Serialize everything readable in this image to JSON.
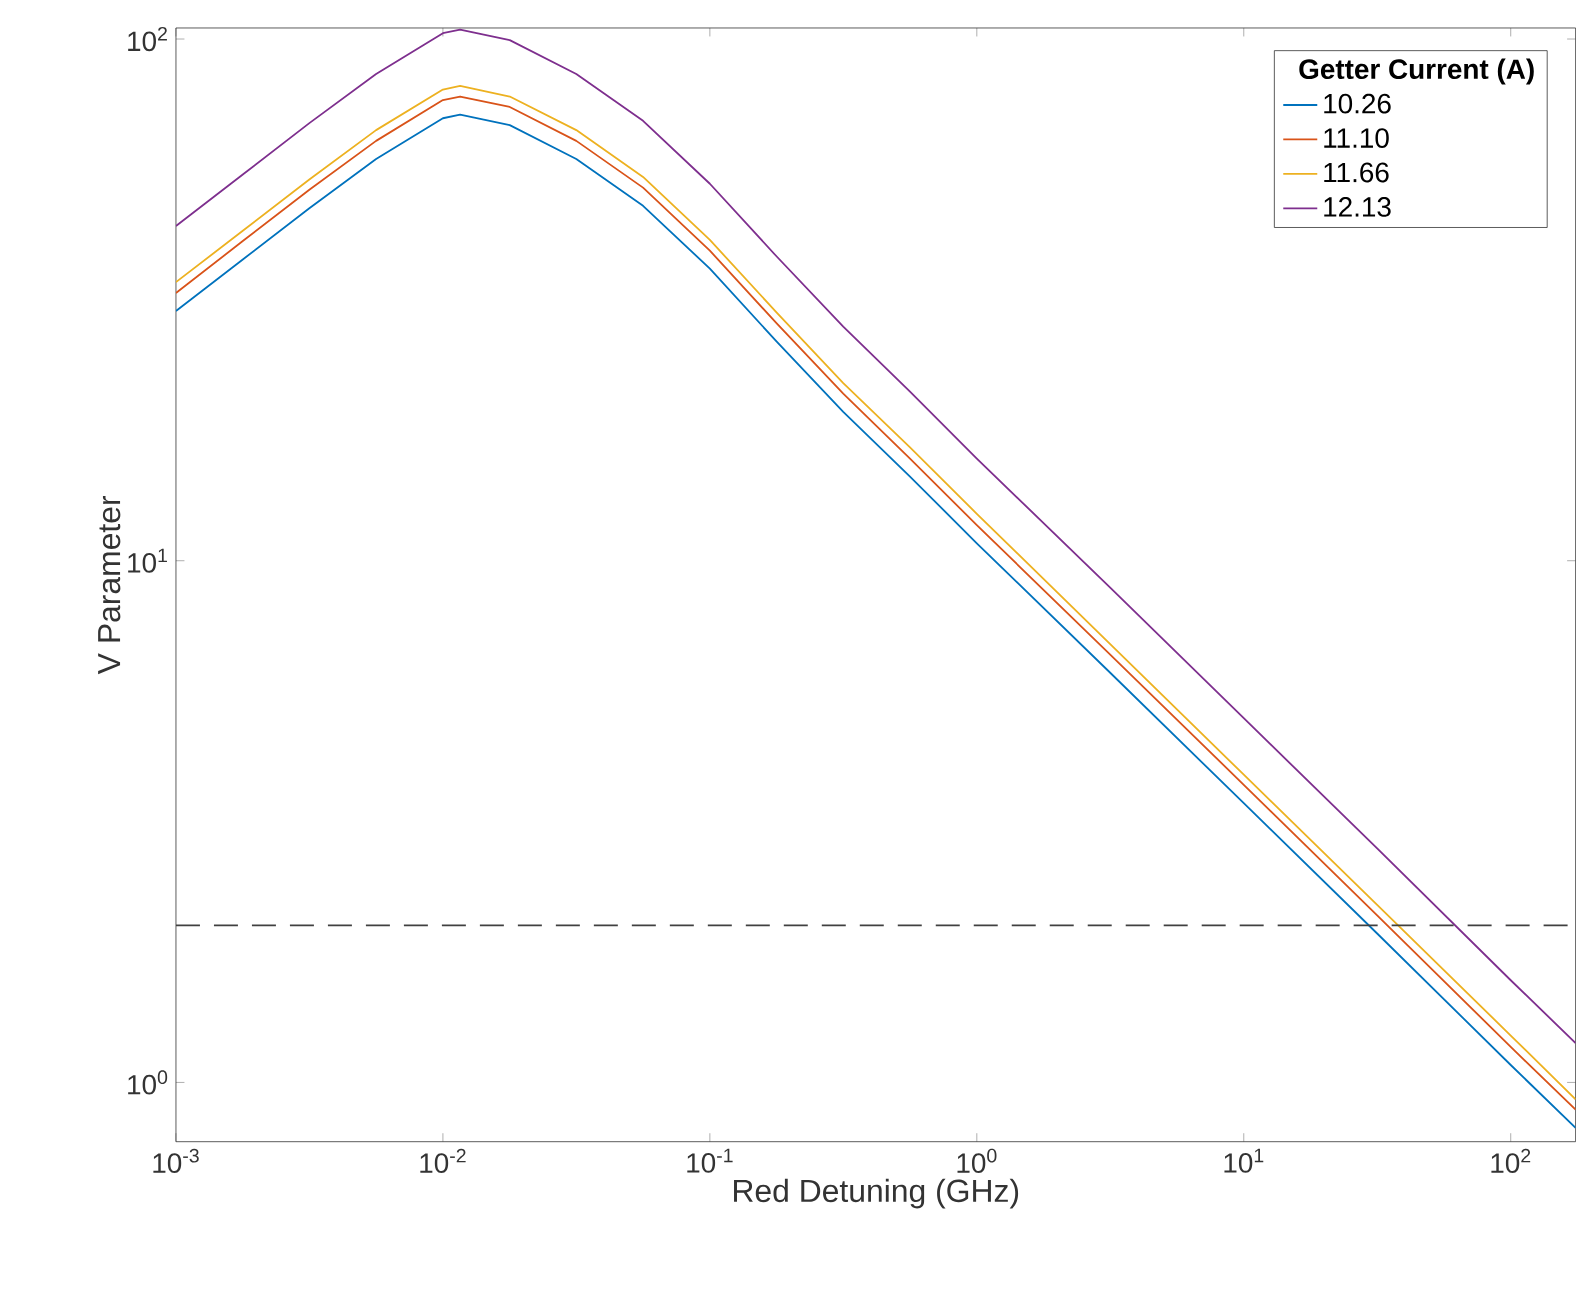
{
  "chart_data": {
    "type": "line",
    "xlabel": "Red Detuning (GHz)",
    "ylabel": "V Parameter",
    "legend_title": "Getter Current (A)",
    "log": "xy",
    "legend": "top right",
    "line_style": "solid",
    "marker": "none",
    "xlim": [
      0.001,
      175
    ],
    "ylim": [
      0.77,
      105
    ],
    "xticks": [
      {
        "value": 0.001,
        "label": "10$^{-3}$"
      },
      {
        "value": 0.01,
        "label": "10$^{-2}$"
      },
      {
        "value": 0.1,
        "label": "10$^{-1}$"
      },
      {
        "value": 1,
        "label": "10$^{0}$"
      },
      {
        "value": 10,
        "label": "10$^{1}$"
      },
      {
        "value": 100,
        "label": "10$^{2}$"
      }
    ],
    "yticks": [
      {
        "value": 1,
        "label": "10$^{0}$"
      },
      {
        "value": 10,
        "label": "10$^{1}$"
      },
      {
        "value": 100,
        "label": "10$^{2}$"
      }
    ],
    "x": [
      0.001,
      0.00178,
      0.00316,
      0.00562,
      0.01,
      0.0116,
      0.0178,
      0.0316,
      0.0562,
      0.1,
      0.178,
      0.316,
      0.562,
      1,
      3.16,
      10,
      31.6,
      100,
      175
    ],
    "series": [
      {
        "name": "10.26",
        "color": "#0072bd",
        "values": [
          30.1,
          37.8,
          47.4,
          58.9,
          70.5,
          71.6,
          68.4,
          58.9,
          47.9,
          36.3,
          26.3,
          19.3,
          14.5,
          10.8,
          6.1,
          3.43,
          1.93,
          1.08,
          0.818
        ]
      },
      {
        "name": "11.10",
        "color": "#d95319",
        "values": [
          32.6,
          41.0,
          51.4,
          63.8,
          76.4,
          77.6,
          74.1,
          63.8,
          51.9,
          39.3,
          28.5,
          20.9,
          15.7,
          11.7,
          6.61,
          3.72,
          2.09,
          1.17,
          0.887
        ]
      },
      {
        "name": "11.66",
        "color": "#edb120",
        "values": [
          34.2,
          42.9,
          53.8,
          66.9,
          80.0,
          81.3,
          77.6,
          66.9,
          54.4,
          41.2,
          29.9,
          21.9,
          16.5,
          12.3,
          6.92,
          3.89,
          2.19,
          1.23,
          0.928
        ]
      },
      {
        "name": "12.13",
        "color": "#7e2f8e",
        "values": [
          43.8,
          55.0,
          69.0,
          85.7,
          102.6,
          104.2,
          99.5,
          85.7,
          69.7,
          52.8,
          38.3,
          28.1,
          21.1,
          15.7,
          8.88,
          4.99,
          2.81,
          1.57,
          1.19
        ]
      }
    ],
    "ref_lines": [
      {
        "axis": "y",
        "value": 2,
        "color": "#404040",
        "line_style": "dashed"
      }
    ]
  }
}
